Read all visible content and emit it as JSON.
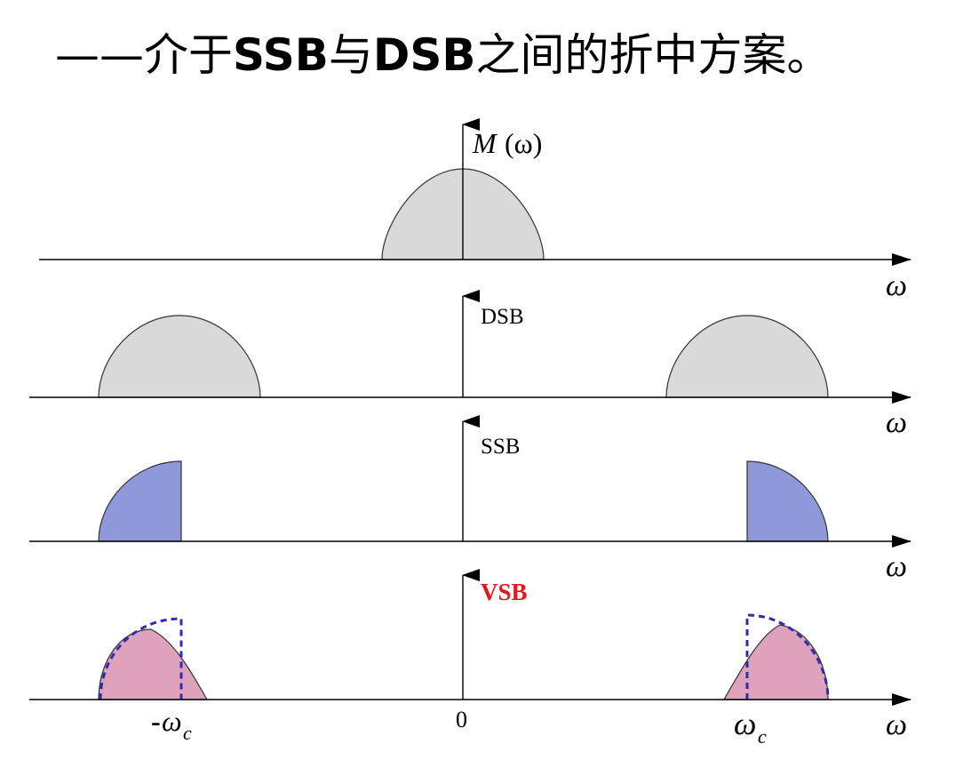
{
  "title": {
    "dash": "——",
    "seg1": "介于",
    "ssb": "SSB",
    "seg2": "与",
    "dsb": "DSB",
    "seg3": "之间的折中方案。"
  },
  "panels": [
    {
      "label": "M",
      "label_paren": "(ω)",
      "axis_var": "ω"
    },
    {
      "label": "DSB",
      "axis_var": "ω"
    },
    {
      "label": "SSB",
      "axis_var": "ω"
    },
    {
      "label": "VSB",
      "axis_var": "ω"
    }
  ],
  "ticks": {
    "neg_wc_sign": "-",
    "neg_wc": "ω",
    "neg_wc_sub": "c",
    "zero": "0",
    "pos_wc": "ω",
    "pos_wc_sub": "c"
  },
  "colors": {
    "gray_fill": "#d9d9d9",
    "blue_fill": "#8f99d9",
    "pink_fill": "#dea2bd",
    "vsb_label": "#e8131c",
    "dash_line": "#2d2db0"
  }
}
